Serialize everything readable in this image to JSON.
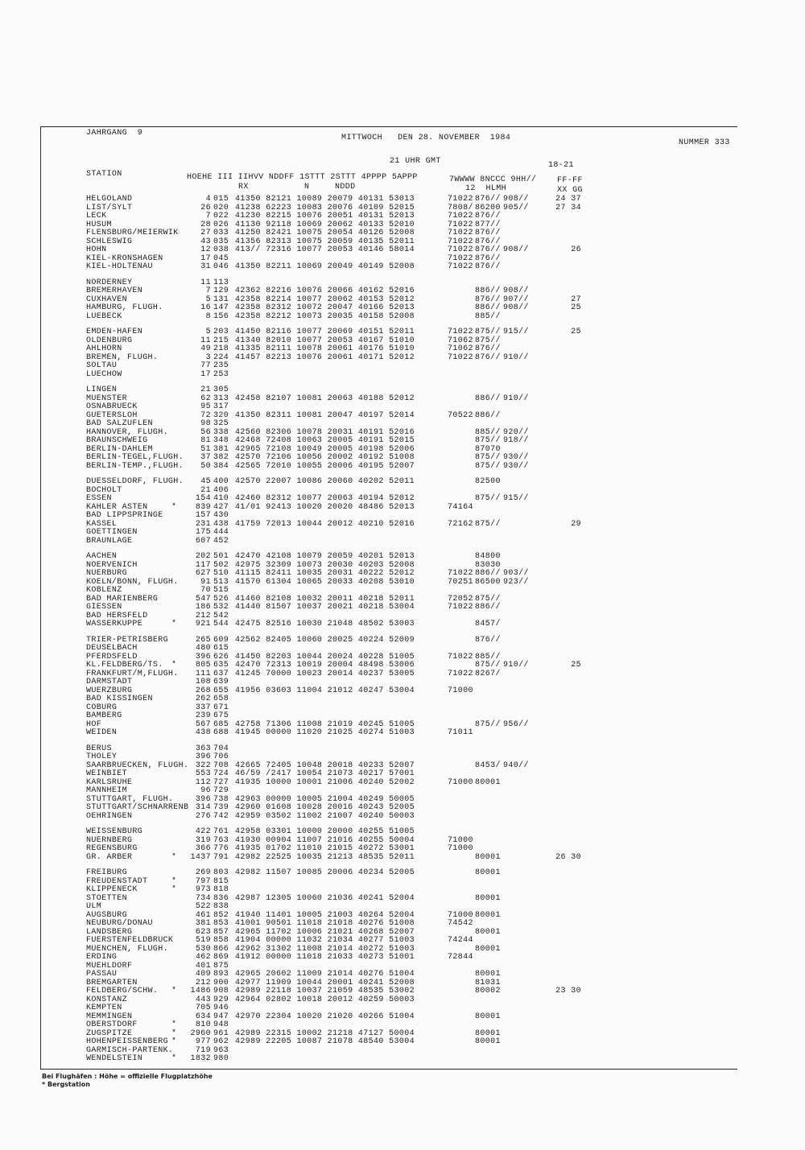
{
  "header": {
    "jahrgang": "JAHRGANG  9",
    "date": "MITTWOCH   DEN 28. NOVEMBER  1984",
    "nummer": "NUMMER 333",
    "time": "21 UHR GMT",
    "period": "18-21"
  },
  "columns": {
    "station": "STATION",
    "main_line1": "HOEHE III IIHVV NDDFF 1STTT 2STTT 4PPPP 5APPP",
    "rx": "RX",
    "n": "N",
    "nddd": "NDDD",
    "sup_line1": "7WWWW 8NCCC 9HH//",
    "sup_line2": "12  HLMH",
    "ff_line1": "FF-FF",
    "ff_line2": "XX GG"
  },
  "groups": [
    [
      [
        "HELGOLAND",
        "",
        "4",
        "015",
        "41350 82121 10089 20079 40131 53013",
        "71022",
        "876//",
        "908//",
        "24 37"
      ],
      [
        "LIST/SYLT",
        "",
        "26",
        "020",
        "41238 62223 10083 20076 40109 52015",
        "7808/",
        "86200",
        "905//",
        "27 34"
      ],
      [
        "LECK",
        "",
        "7",
        "022",
        "41230 82215 10076 20051 40131 52013",
        "71022",
        "876//",
        "",
        ""
      ],
      [
        "HUSUM",
        "",
        "28",
        "026",
        "41130 92118 10069 20062 40133 52010",
        "71022",
        "877//",
        "",
        ""
      ],
      [
        "FLENSBURG/MEIERWIK",
        "",
        "27",
        "033",
        "41250 82421 10075 20054 40126 52008",
        "71022",
        "876//",
        "",
        ""
      ],
      [
        "SCHLESWIG",
        "",
        "43",
        "035",
        "41356 82313 10075 20059 40135 52011",
        "71022",
        "876//",
        "",
        ""
      ],
      [
        "HOHN",
        "",
        "12",
        "038",
        "413// 72316 10077 20053 40146 58014",
        "71022",
        "876//",
        "908//",
        "26"
      ],
      [
        "KIEL-KRONSHAGEN",
        "",
        "17",
        "045",
        "",
        "71022",
        "876//",
        "",
        ""
      ],
      [
        "KIEL-HOLTENAU",
        "",
        "31",
        "046",
        "41350 82211 10069 20049 40149 52008",
        "71022",
        "876//",
        "",
        ""
      ]
    ],
    [
      [
        "NORDERNEY",
        "",
        "11",
        "113",
        "",
        "",
        "",
        "",
        ""
      ],
      [
        "BREMERHAVEN",
        "",
        "7",
        "129",
        "42362 82216 10076 20066 40162 52016",
        "",
        "886//",
        "908//",
        ""
      ],
      [
        "CUXHAVEN",
        "",
        "5",
        "131",
        "42358 82214 10077 20062 40153 52012",
        "",
        "876//",
        "907//",
        "27"
      ],
      [
        "HAMBURG, FLUGH.",
        "",
        "16",
        "147",
        "42358 82312 10072 20047 40166 52013",
        "",
        "886//",
        "908//",
        "25"
      ],
      [
        "LUEBECK",
        "",
        "8",
        "156",
        "42358 82212 10073 20035 40158 52008",
        "",
        "885//",
        "",
        ""
      ]
    ],
    [
      [
        "EMDEN-HAFEN",
        "",
        "5",
        "203",
        "41450 82116 10077 20069 40151 52011",
        "71022",
        "875//",
        "915//",
        "25"
      ],
      [
        "OLDENBURG",
        "",
        "11",
        "215",
        "41340 82010 10077 20053 40167 51010",
        "71062",
        "875//",
        "",
        ""
      ],
      [
        "AHLHORN",
        "",
        "49",
        "218",
        "41335 82111 10078 20061 40176 51010",
        "71062",
        "876//",
        "",
        ""
      ],
      [
        "BREMEN, FLUGH.",
        "",
        "3",
        "224",
        "41457 82213 10076 20061 40171 52012",
        "71022",
        "876//",
        "910//",
        ""
      ],
      [
        "SOLTAU",
        "",
        "77",
        "235",
        "",
        "",
        "",
        "",
        ""
      ],
      [
        "LUECHOW",
        "",
        "17",
        "253",
        "",
        "",
        "",
        "",
        ""
      ]
    ],
    [
      [
        "LINGEN",
        "",
        "21",
        "305",
        "",
        "",
        "",
        "",
        ""
      ],
      [
        "MUENSTER",
        "",
        "62",
        "313",
        "42458 82107 10081 20063 40188 52012",
        "",
        "886//",
        "910//",
        ""
      ],
      [
        "OSNABRUECK",
        "",
        "95",
        "317",
        "",
        "",
        "",
        "",
        ""
      ],
      [
        "GUETERSLOH",
        "",
        "72",
        "320",
        "41350 82311 10081 20047 40197 52014",
        "70522",
        "886//",
        "",
        ""
      ],
      [
        "BAD SALZUFLEN",
        "",
        "98",
        "325",
        "",
        "",
        "",
        "",
        ""
      ],
      [
        "HANNOVER, FLUGH.",
        "",
        "56",
        "338",
        "42560 82306 10078 20031 40191 52016",
        "",
        "885//",
        "920//",
        ""
      ],
      [
        "BRAUNSCHWEIG",
        "",
        "81",
        "348",
        "42468 72408 10063 20005 40191 52015",
        "",
        "875//",
        "918//",
        ""
      ],
      [
        "BERLIN-DAHLEM",
        "",
        "51",
        "381",
        "42965 72108 10049 20005 40198 52006",
        "",
        "87070",
        "",
        ""
      ],
      [
        "BERLIN-TEGEL,FLUGH.",
        "",
        "37",
        "382",
        "42570 72106 10056 20002 40192 51008",
        "",
        "875//",
        "930//",
        ""
      ],
      [
        "BERLIN-TEMP.,FLUGH.",
        "",
        "50",
        "384",
        "42565 72010 10055 20006 40195 52007",
        "",
        "875//",
        "930//",
        ""
      ]
    ],
    [
      [
        "DUESSELDORF, FLUGH.",
        "",
        "45",
        "400",
        "42570 22007 10086 20060 40202 52011",
        "",
        "82500",
        "",
        ""
      ],
      [
        "BOCHOLT",
        "",
        "21",
        "406",
        "",
        "",
        "",
        "",
        ""
      ],
      [
        "ESSEN",
        "",
        "154",
        "410",
        "42460 82312 10077 20063 40194 52012",
        "",
        "875//",
        "915//",
        ""
      ],
      [
        "KAHLER ASTEN",
        "*",
        "839",
        "427",
        "41/01 92413 10020 20020 48486 52013",
        "74164",
        "",
        "",
        ""
      ],
      [
        "BAD LIPPSPRINGE",
        "",
        "157",
        "430",
        "",
        "",
        "",
        "",
        ""
      ],
      [
        "KASSEL",
        "",
        "231",
        "438",
        "41759 72013 10044 20012 40210 52016",
        "72162",
        "875//",
        "",
        "29"
      ],
      [
        "GOETTINGEN",
        "",
        "175",
        "444",
        "",
        "",
        "",
        "",
        ""
      ],
      [
        "BRAUNLAGE",
        "",
        "607",
        "452",
        "",
        "",
        "",
        "",
        ""
      ]
    ],
    [
      [
        "AACHEN",
        "",
        "202",
        "501",
        "42470 42108 10079 20059 40201 52013",
        "",
        "84800",
        "",
        ""
      ],
      [
        "NOERVENICH",
        "",
        "117",
        "502",
        "42975 32309 10073 20030 40203 52008",
        "",
        "83030",
        "",
        ""
      ],
      [
        "NUERBURG",
        "",
        "627",
        "510",
        "41115 82411 10035 20031 40222 52012",
        "71022",
        "886//",
        "903//",
        ""
      ],
      [
        "KOELN/BONN, FLUGH.",
        "",
        "91",
        "513",
        "41570 61304 10065 20033 40208 53010",
        "70251",
        "86500",
        "923//",
        ""
      ],
      [
        "KOBLENZ",
        "",
        "70",
        "515",
        "",
        "",
        "",
        "",
        ""
      ],
      [
        "BAD MARIENBERG",
        "",
        "547",
        "526",
        "41460 82108 10032 20011 40218 52011",
        "72052",
        "875//",
        "",
        ""
      ],
      [
        "GIESSEN",
        "",
        "186",
        "532",
        "41440 81507 10037 20021 40218 53004",
        "71022",
        "886//",
        "",
        ""
      ],
      [
        "BAD HERSFELD",
        "",
        "212",
        "542",
        "",
        "",
        "",
        "",
        ""
      ],
      [
        "WASSERKUPPE",
        "*",
        "921",
        "544",
        "42475 82516 10030 21048 48502 53003",
        "",
        "8457/",
        "",
        ""
      ]
    ],
    [
      [
        "TRIER-PETRISBERG",
        "",
        "265",
        "609",
        "42562 82405 10060 20025 40224 52009",
        "",
        "876//",
        "",
        ""
      ],
      [
        "DEUSELBACH",
        "",
        "480",
        "615",
        "",
        "",
        "",
        "",
        ""
      ],
      [
        "PFERDSFELD",
        "",
        "396",
        "626",
        "41450 82203 10044 20024 40228 51005",
        "71022",
        "885//",
        "",
        ""
      ],
      [
        "KL.FELDBERG/TS.",
        "*",
        "805",
        "635",
        "42470 72313 10019 20004 48498 53006",
        "",
        "875//",
        "910//",
        "25"
      ],
      [
        "FRANKFURT/M,FLUGH.",
        "",
        "111",
        "637",
        "41245 70000 10023 20014 40237 53005",
        "71022",
        "8267/",
        "",
        ""
      ],
      [
        "DARMSTADT",
        "",
        "108",
        "639",
        "",
        "",
        "",
        "",
        ""
      ],
      [
        "WUERZBURG",
        "",
        "268",
        "655",
        "41956 03603 11004 21012 40247 53004",
        "71000",
        "",
        "",
        ""
      ],
      [
        "BAD KISSINGEN",
        "",
        "262",
        "658",
        "",
        "",
        "",
        "",
        ""
      ],
      [
        "COBURG",
        "",
        "337",
        "671",
        "",
        "",
        "",
        "",
        ""
      ],
      [
        "BAMBERG",
        "",
        "239",
        "675",
        "",
        "",
        "",
        "",
        ""
      ],
      [
        "HOF",
        "",
        "567",
        "685",
        "42758 71306 11008 21019 40245 51005",
        "",
        "875//",
        "956//",
        ""
      ],
      [
        "WEIDEN",
        "",
        "438",
        "688",
        "41945 00000 11020 21025 40274 51003",
        "71011",
        "",
        "",
        ""
      ]
    ],
    [
      [
        "BERUS",
        "",
        "363",
        "704",
        "",
        "",
        "",
        "",
        ""
      ],
      [
        "THOLEY",
        "",
        "396",
        "706",
        "",
        "",
        "",
        "",
        ""
      ],
      [
        "SAARBRUECKEN, FLUGH.",
        "",
        "322",
        "708",
        "42665 72405 10048 20018 40233 52007",
        "",
        "8453/",
        "940//",
        ""
      ],
      [
        "WEINBIET",
        "",
        "553",
        "724",
        "46/59 /2417 10054 21073 40217 57001",
        "",
        "",
        "",
        ""
      ],
      [
        "KARLSRUHE",
        "",
        "112",
        "727",
        "41935 10000 10001 21006 40240 52002",
        "71000",
        "80001",
        "",
        ""
      ],
      [
        "MANNHEIM",
        "",
        "96",
        "729",
        "",
        "",
        "",
        "",
        ""
      ],
      [
        "STUTTGART, FLUGH.",
        "",
        "396",
        "738",
        "42963 00000 10005 21004 40249 50005",
        "",
        "",
        "",
        ""
      ],
      [
        "STUTTGART/SCHNARRENB",
        "",
        "314",
        "739",
        "42960 01608 10028 20016 40243 52005",
        "",
        "",
        "",
        ""
      ],
      [
        "OEHRINGEN",
        "",
        "276",
        "742",
        "42959 03502 11002 21007 40240 50003",
        "",
        "",
        "",
        ""
      ]
    ],
    [
      [
        "WEISSENBURG",
        "",
        "422",
        "761",
        "42958 03301 10000 20000 40255 51005",
        "",
        "",
        "",
        ""
      ],
      [
        "NUERNBERG",
        "",
        "319",
        "763",
        "41930 00904 11007 21016 40255 50004",
        "71000",
        "",
        "",
        ""
      ],
      [
        "REGENSBURG",
        "",
        "366",
        "776",
        "41935 01702 11010 21015 40272 53001",
        "71000",
        "",
        "",
        ""
      ],
      [
        "GR. ARBER",
        "*",
        "1437",
        "791",
        "42982 22525 10035 21213 48535 52011",
        "",
        "80001",
        "",
        "26 30"
      ]
    ],
    [
      [
        "FREIBURG",
        "",
        "269",
        "803",
        "42982 11507 10085 20006 40234 52005",
        "",
        "80001",
        "",
        ""
      ],
      [
        "FREUDENSTADT",
        "*",
        "797",
        "815",
        "",
        "",
        "",
        "",
        ""
      ],
      [
        "KLIPPENECK",
        "*",
        "973",
        "818",
        "",
        "",
        "",
        "",
        ""
      ],
      [
        "STOETTEN",
        "",
        "734",
        "836",
        "42987 12305 10060 21036 40241 52004",
        "",
        "80001",
        "",
        ""
      ],
      [
        "ULM",
        "",
        "522",
        "838",
        "",
        "",
        "",
        "",
        ""
      ],
      [
        "AUGSBURG",
        "",
        "461",
        "852",
        "41940 11401 10005 21003 40264 52004",
        "71000",
        "80001",
        "",
        ""
      ],
      [
        "NEUBURG/DONAU",
        "",
        "381",
        "853",
        "41001 90501 11018 21018 40276 51008",
        "74542",
        "",
        "",
        ""
      ],
      [
        "LANDSBERG",
        "",
        "623",
        "857",
        "42965 11702 10006 21021 40268 52007",
        "",
        "80001",
        "",
        ""
      ],
      [
        "FUERSTENFELDBRUCK",
        "",
        "519",
        "858",
        "41904 00000 11032 21034 40277 51003",
        "74244",
        "",
        "",
        ""
      ],
      [
        "MUENCHEN, FLUGH.",
        "",
        "530",
        "866",
        "42962 31302 11008 21014 40272 51003",
        "",
        "80001",
        "",
        ""
      ],
      [
        "ERDING",
        "",
        "462",
        "869",
        "41912 00000 11018 21033 40273 51001",
        "72844",
        "",
        "",
        ""
      ],
      [
        "MUEHLDORF",
        "",
        "401",
        "875",
        "",
        "",
        "",
        "",
        ""
      ],
      [
        "PASSAU",
        "",
        "409",
        "893",
        "42965 20602 11009 21014 40276 51004",
        "",
        "80001",
        "",
        ""
      ],
      [
        "BREMGARTEN",
        "",
        "212",
        "900",
        "42977 11909 10044 20001 40241 52008",
        "",
        "81031",
        "",
        ""
      ],
      [
        "FELDBERG/SCHW.",
        "*",
        "1486",
        "908",
        "42989 22118 10037 21059 48535 53002",
        "",
        "80002",
        "",
        "23 30"
      ],
      [
        "KONSTANZ",
        "",
        "443",
        "929",
        "42964 02802 10018 20012 40259 50003",
        "",
        "",
        "",
        ""
      ],
      [
        "KEMPTEN",
        "",
        "705",
        "946",
        "",
        "",
        "",
        "",
        ""
      ],
      [
        "MEMMINGEN",
        "",
        "634",
        "947",
        "42970 22304 10020 21020 40266 51004",
        "",
        "80001",
        "",
        ""
      ],
      [
        "OBERSTDORF",
        "*",
        "810",
        "948",
        "",
        "",
        "",
        "",
        ""
      ],
      [
        "ZUGSPITZE",
        "*",
        "2960",
        "961",
        "42989 22315 10002 21218 47127 50004",
        "",
        "80001",
        "",
        ""
      ],
      [
        "HOHENPEISSENBERG",
        "*",
        "977",
        "962",
        "42989 22205 10087 21078 48540 53004",
        "",
        "80001",
        "",
        ""
      ],
      [
        "GARMISCH-PARTENK.",
        "",
        "719",
        "963",
        "",
        "",
        "",
        "",
        ""
      ],
      [
        "WENDELSTEIN",
        "*",
        "1832",
        "980",
        "",
        "",
        "",
        "",
        ""
      ]
    ]
  ],
  "footnotes": {
    "airports": "Bei Flughäfen : Höhe = offizielle Flugplatzhöhe",
    "mountain": "* Bergstation"
  }
}
